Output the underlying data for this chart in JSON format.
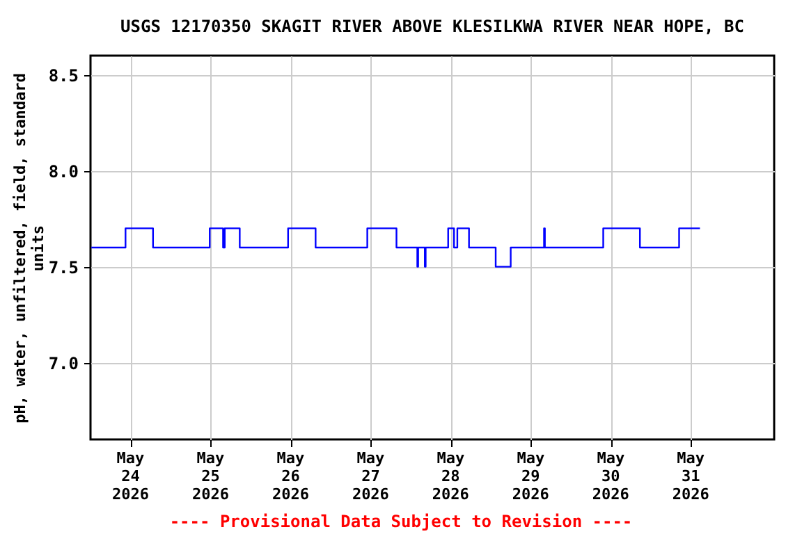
{
  "chart_data": {
    "type": "step",
    "title": "USGS 12170350 SKAGIT RIVER ABOVE KLESILKWA RIVER NEAR HOPE, BC",
    "ylabel": "pH, water, unfiltered, field, standard units",
    "annotations": [
      "---- Provisional Data Subject to Revision ----"
    ],
    "x": [
      "2026-05-23T12:15",
      "2026-05-23T22:30",
      "2026-05-24T06:45",
      "2026-05-24T23:45",
      "2026-05-25T03:45",
      "2026-05-25T04:15",
      "2026-05-25T08:45",
      "2026-05-25T23:15",
      "2026-05-26T07:30",
      "2026-05-26T23:00",
      "2026-05-27T07:45",
      "2026-05-27T14:00",
      "2026-05-27T14:15",
      "2026-05-27T16:15",
      "2026-05-27T16:30",
      "2026-05-27T23:15",
      "2026-05-28T01:00",
      "2026-05-28T02:00",
      "2026-05-28T05:30",
      "2026-05-28T13:30",
      "2026-05-28T18:00",
      "2026-05-29T04:00",
      "2026-05-29T04:15",
      "2026-05-29T21:45",
      "2026-05-30T08:45",
      "2026-05-30T20:30",
      "2026-05-31T02:45"
    ],
    "series": [
      {
        "color": "#0000ff",
        "values": [
          7.6,
          7.7,
          7.6,
          7.7,
          7.6,
          7.7,
          7.6,
          7.7,
          7.6,
          7.7,
          7.6,
          7.5,
          7.6,
          7.5,
          7.6,
          7.7,
          7.6,
          7.7,
          7.6,
          7.5,
          7.6,
          7.7,
          7.6,
          7.7,
          7.6,
          7.7,
          7.7
        ]
      }
    ],
    "xlim": [
      "2026-05-23T12:00",
      "2026-06-01T01:00"
    ],
    "xticks": [
      {
        "value": "2026-05-24",
        "label": "May 24 2026"
      },
      {
        "value": "2026-05-25",
        "label": "May 25 2026"
      },
      {
        "value": "2026-05-26",
        "label": "May 26 2026"
      },
      {
        "value": "2026-05-27",
        "label": "May 27 2026"
      },
      {
        "value": "2026-05-28",
        "label": "May 28 2026"
      },
      {
        "value": "2026-05-29",
        "label": "May 29 2026"
      },
      {
        "value": "2026-05-30",
        "label": "May 30 2026"
      },
      {
        "value": "2026-05-31",
        "label": "May 31 2026"
      }
    ],
    "ylim": [
      6.6,
      8.6
    ],
    "yticks": [
      {
        "value": 7.0,
        "label": "7.0"
      },
      {
        "value": 7.5,
        "label": "7.5"
      },
      {
        "value": 8.0,
        "label": "8.0"
      },
      {
        "value": 8.5,
        "label": "8.5"
      }
    ],
    "grid": true,
    "line_style": "solid",
    "marker": "none"
  }
}
